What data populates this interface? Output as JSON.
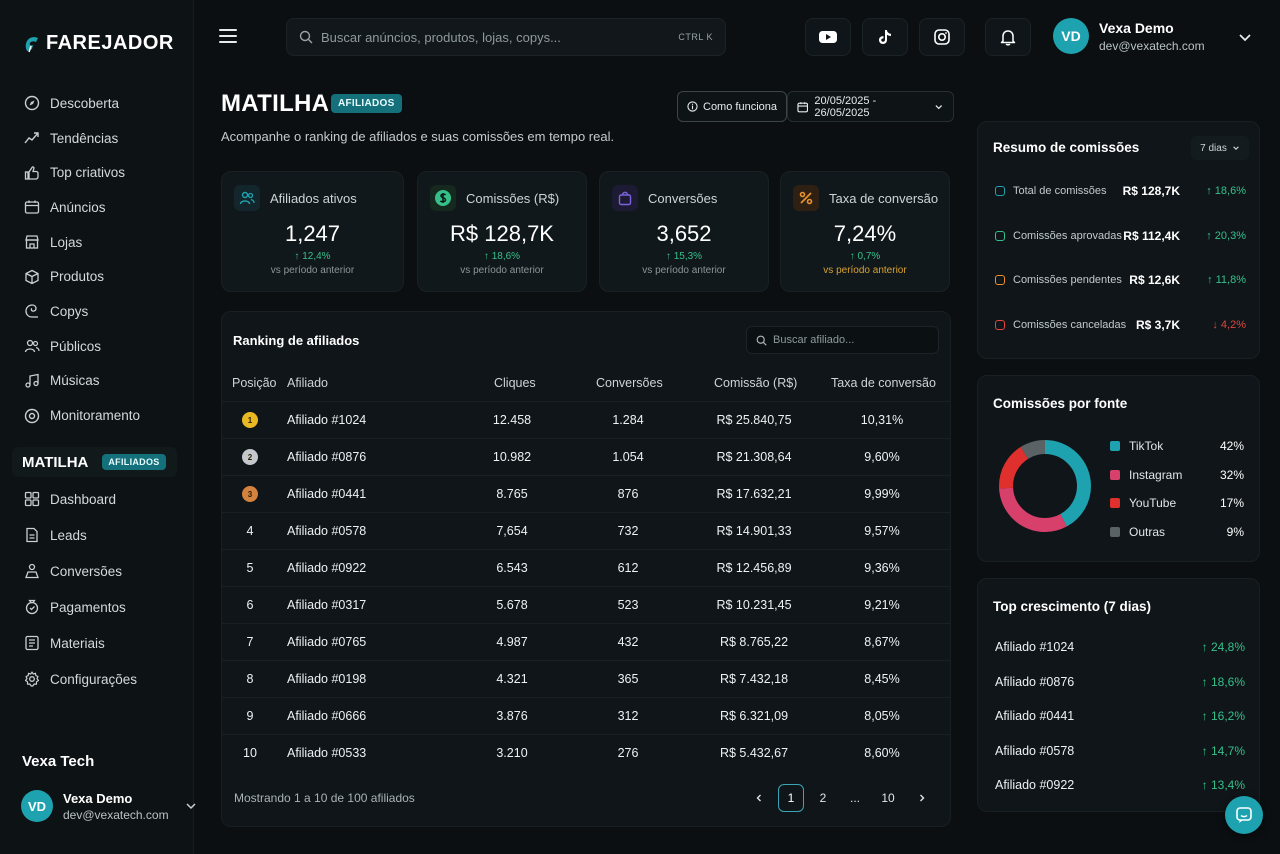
{
  "brand": "FAREJADOR",
  "nav": [
    {
      "label": "Descoberta",
      "icon": "compass-icon"
    },
    {
      "label": "Tendências",
      "icon": "trend-icon"
    },
    {
      "label": "Top criativos",
      "icon": "creatives-icon"
    },
    {
      "label": "Anúncios",
      "icon": "ads-icon"
    },
    {
      "label": "Lojas",
      "icon": "store-icon"
    },
    {
      "label": "Produtos",
      "icon": "product-icon"
    },
    {
      "label": "Copys",
      "icon": "copy-icon"
    },
    {
      "label": "Públicos",
      "icon": "audience-icon"
    },
    {
      "label": "Músicas",
      "icon": "music-icon"
    },
    {
      "label": "Monitoramento",
      "icon": "monitor-icon"
    }
  ],
  "section": {
    "name": "MATILHA",
    "badge": "AFILIADOS"
  },
  "nav2": [
    {
      "label": "Dashboard",
      "icon": "dashboard-icon"
    },
    {
      "label": "Leads",
      "icon": "leads-icon"
    },
    {
      "label": "Conversões",
      "icon": "conversions-icon"
    },
    {
      "label": "Pagamentos",
      "icon": "payments-icon"
    },
    {
      "label": "Materiais",
      "icon": "materials-icon"
    },
    {
      "label": "Configurações",
      "icon": "gear-icon"
    }
  ],
  "org": "Vexa Tech",
  "user": {
    "initials": "VD",
    "name": "Vexa Demo",
    "email": "dev@vexatech.com"
  },
  "search": {
    "placeholder": "Buscar anúncios, produtos, lojas, copys...",
    "shortcut": "CTRL K"
  },
  "header": {
    "title": "MATILHA",
    "badge": "AFILIADOS",
    "subtitle": "Acompanhe o ranking de afiliados e suas comissões em tempo real.",
    "how_label": "Como funciona",
    "date_range": "20/05/2025 - 26/05/2025"
  },
  "kpis": [
    {
      "label": "Afiliados ativos",
      "value": "1,247",
      "delta": "↑ 12,4%",
      "note": "vs período anterior",
      "icon": "users-icon",
      "color": "#1fa2b0"
    },
    {
      "label": "Comissões (R$)",
      "value": "R$ 128,7K",
      "delta": "↑ 18,6%",
      "note": "vs período anterior",
      "icon": "dollar-icon",
      "color": "#35c08a"
    },
    {
      "label": "Conversões",
      "value": "3,652",
      "delta": "↑ 15,3%",
      "note": "vs período anterior",
      "icon": "bag-icon",
      "color": "#7b63d9"
    },
    {
      "label": "Taxa de conversão",
      "value": "7,24%",
      "delta": "↑ 0,7%",
      "note": "vs período anterior",
      "icon": "percent-icon",
      "color": "#e8902c"
    }
  ],
  "ranking": {
    "title": "Ranking de afiliados",
    "search_placeholder": "Buscar afiliado...",
    "columns": [
      "Posição",
      "Afiliado",
      "Cliques",
      "Conversões",
      "Comissão (R$)",
      "Taxa de conversão"
    ],
    "rows": [
      {
        "pos": "1",
        "name": "Afiliado #1024",
        "clicks": "12.458",
        "conv": "1.284",
        "commission": "R$ 25.840,75",
        "rate": "10,31%"
      },
      {
        "pos": "2",
        "name": "Afiliado #0876",
        "clicks": "10.982",
        "conv": "1.054",
        "commission": "R$ 21.308,64",
        "rate": "9,60%"
      },
      {
        "pos": "3",
        "name": "Afiliado #0441",
        "clicks": "8.765",
        "conv": "876",
        "commission": "R$ 17.632,21",
        "rate": "9,99%"
      },
      {
        "pos": "4",
        "name": "Afiliado #0578",
        "clicks": "7,654",
        "conv": "732",
        "commission": "R$ 14.901,33",
        "rate": "9,57%"
      },
      {
        "pos": "5",
        "name": "Afiliado #0922",
        "clicks": "6.543",
        "conv": "612",
        "commission": "R$ 12.456,89",
        "rate": "9,36%"
      },
      {
        "pos": "6",
        "name": "Afiliado #0317",
        "clicks": "5.678",
        "conv": "523",
        "commission": "R$ 10.231,45",
        "rate": "9,21%"
      },
      {
        "pos": "7",
        "name": "Afiliado #0765",
        "clicks": "4.987",
        "conv": "432",
        "commission": "R$ 8.765,22",
        "rate": "8,67%"
      },
      {
        "pos": "8",
        "name": "Afiliado #0198",
        "clicks": "4.321",
        "conv": "365",
        "commission": "R$ 7.432,18",
        "rate": "8,45%"
      },
      {
        "pos": "9",
        "name": "Afiliado #0666",
        "clicks": "3.876",
        "conv": "312",
        "commission": "R$ 6.321,09",
        "rate": "8,05%"
      },
      {
        "pos": "10",
        "name": "Afiliado #0533",
        "clicks": "3.210",
        "conv": "276",
        "commission": "R$ 5.432,67",
        "rate": "8,60%"
      }
    ],
    "showing": "Mostrando 1 a 10 de 100 afiliados",
    "pages": [
      "1",
      "2",
      "...",
      "10"
    ]
  },
  "summary": {
    "title": "Resumo de comissões",
    "period": "7 dias",
    "items": [
      {
        "label": "Total de comissões",
        "value": "R$ 128,7K",
        "delta": "↑ 18,6%",
        "dir": "up",
        "color": "#1fa2b0"
      },
      {
        "label": "Comissões aprovadas",
        "value": "R$ 112,4K",
        "delta": "↑ 20,3%",
        "dir": "up",
        "color": "#35c08a"
      },
      {
        "label": "Comissões pendentes",
        "value": "R$ 12,6K",
        "delta": "↑ 11,8%",
        "dir": "up",
        "color": "#e8902c"
      },
      {
        "label": "Comissões canceladas",
        "value": "R$ 3,7K",
        "delta": "↓ 4,2%",
        "dir": "down",
        "color": "#e0453e"
      }
    ]
  },
  "sources": {
    "title": "Comissões por fonte",
    "items": [
      {
        "name": "TikTok",
        "pct": "42%",
        "value": 42,
        "color": "#1fa2b0"
      },
      {
        "name": "Instagram",
        "pct": "32%",
        "value": 32,
        "color": "#d6406a"
      },
      {
        "name": "YouTube",
        "pct": "17%",
        "value": 17,
        "color": "#e0302e"
      },
      {
        "name": "Outras",
        "pct": "9%",
        "value": 9,
        "color": "#5a6266"
      }
    ]
  },
  "growth": {
    "title": "Top crescimento (7 dias)",
    "items": [
      {
        "name": "Afiliado #1024",
        "value": "↑ 24,8%"
      },
      {
        "name": "Afiliado #0876",
        "value": "↑ 18,6%"
      },
      {
        "name": "Afiliado #0441",
        "value": "↑ 16,2%"
      },
      {
        "name": "Afiliado #0578",
        "value": "↑ 14,7%"
      },
      {
        "name": "Afiliado #0922",
        "value": "↑ 13,4%"
      }
    ]
  }
}
